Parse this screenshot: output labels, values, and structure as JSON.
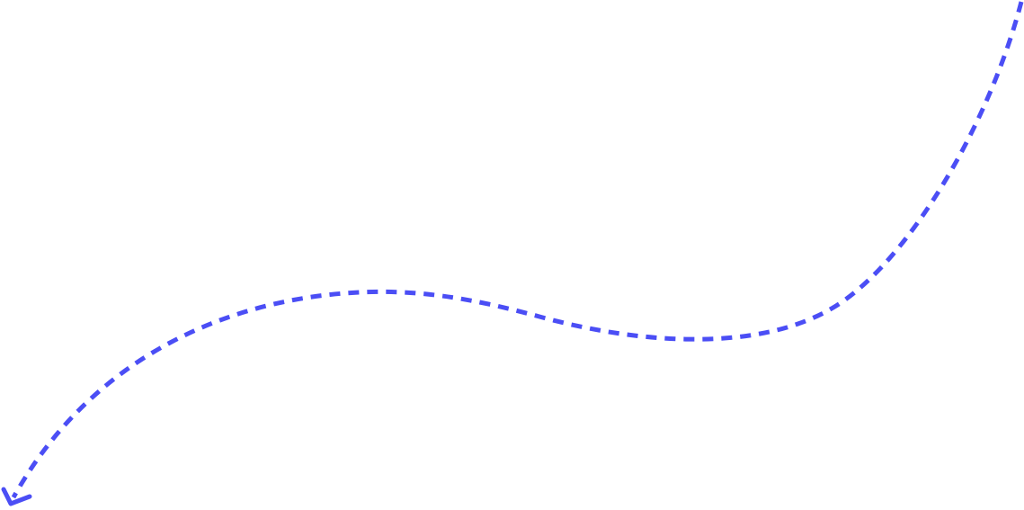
{
  "arrow": {
    "icon": "dashed-curved-arrow-icon",
    "color": "#4B4EF5",
    "direction": "down-left"
  }
}
